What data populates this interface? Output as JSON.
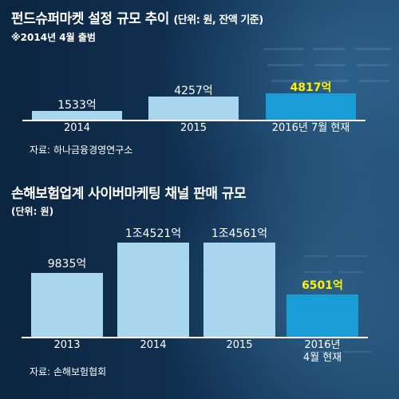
{
  "colors": {
    "background": "#0f2c4a",
    "bar": "#a9d6ef",
    "bar_highlight": "#1a9dd6",
    "label": "#ffffff",
    "label_highlight": "#fff200"
  },
  "chart_data": [
    {
      "type": "bar",
      "title": "펀드슈퍼마켓 설정 규모 추이",
      "unit_note": "(단위: 원, 잔액 기준)",
      "subtitle": "※2014년 4월 출범",
      "categories": [
        "2014",
        "2015",
        "2016년 7월 현재"
      ],
      "values": [
        1533,
        4257,
        4817
      ],
      "value_labels": [
        "1533억",
        "4257억",
        "4817억"
      ],
      "highlight_index": 2,
      "source": "자료: 하나금융경영연구소"
    },
    {
      "type": "bar",
      "title": "손해보험업계 사이버마케팅 채널 판매 규모",
      "unit_note": "(단위: 원)",
      "categories": [
        "2013",
        "2014",
        "2015",
        "2016년\n4월 현재"
      ],
      "values": [
        9835,
        14521,
        14561,
        6501
      ],
      "value_labels": [
        "9835억",
        "1조4521억",
        "1조4561억",
        "6501억"
      ],
      "highlight_index": 3,
      "source": "자료: 손해보험협회"
    }
  ]
}
